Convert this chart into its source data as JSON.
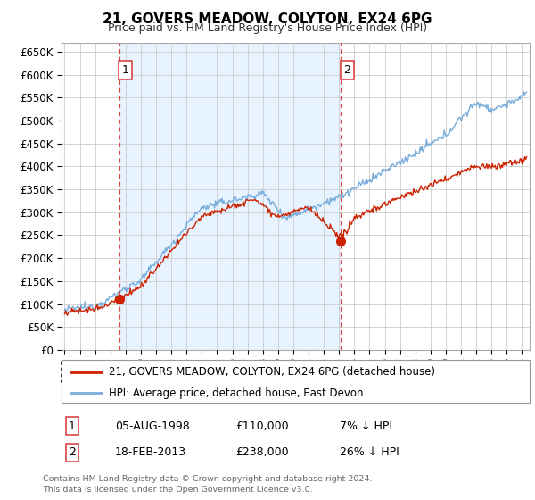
{
  "title": "21, GOVERS MEADOW, COLYTON, EX24 6PG",
  "subtitle": "Price paid vs. HM Land Registry's House Price Index (HPI)",
  "legend_line1": "21, GOVERS MEADOW, COLYTON, EX24 6PG (detached house)",
  "legend_line2": "HPI: Average price, detached house, East Devon",
  "sale1_label": "1",
  "sale1_date": "05-AUG-1998",
  "sale1_price": "£110,000",
  "sale1_hpi": "7% ↓ HPI",
  "sale1_year": 1998.59,
  "sale1_value": 110000,
  "sale2_label": "2",
  "sale2_date": "18-FEB-2013",
  "sale2_price": "£238,000",
  "sale2_hpi": "26% ↓ HPI",
  "sale2_year": 2013.13,
  "sale2_value": 238000,
  "footer": "Contains HM Land Registry data © Crown copyright and database right 2024.\nThis data is licensed under the Open Government Licence v3.0.",
  "hpi_color": "#7aaddc",
  "sale_color": "#cc2200",
  "vline_color": "#dd4444",
  "grid_color": "#cccccc",
  "bg_color": "#ffffff",
  "shade_color": "#ddeeff",
  "ylim_min": 0,
  "ylim_max": 670000,
  "ytick_step": 50000,
  "xmin": 1994.8,
  "xmax": 2025.5
}
